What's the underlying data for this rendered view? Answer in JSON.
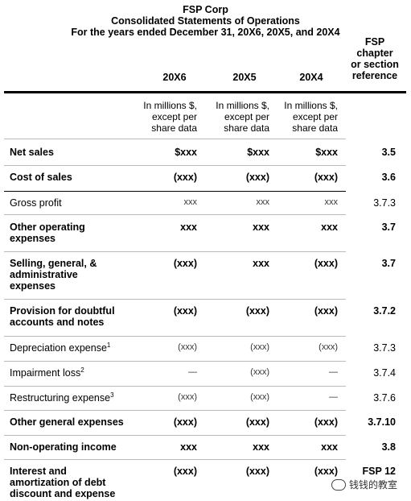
{
  "header": {
    "company": "FSP Corp",
    "statement": "Consolidated Statements of Operations",
    "period": "For the years ended December 31, 20X6, 20X5, and 20X4",
    "years": [
      "20X6",
      "20X5",
      "20X4"
    ],
    "fsp_ref_line1": "FSP",
    "fsp_ref_line2": "chapter",
    "fsp_ref_line3": "or section",
    "fsp_ref_line4": "reference",
    "units_line1": "In millions $,",
    "units_line2": "except per",
    "units_line3": "share data"
  },
  "rows": [
    {
      "label": [
        "Net sales"
      ],
      "bold": true,
      "values": [
        "$xxx",
        "$xxx",
        "$xxx"
      ],
      "ref": "3.5"
    },
    {
      "label": [
        "Cost of sales"
      ],
      "bold": true,
      "values": [
        "(xxx)",
        "(xxx)",
        "(xxx)"
      ],
      "ref": "3.6"
    },
    {
      "label": [
        "Gross profit"
      ],
      "bold": false,
      "values": [
        "xxx",
        "xxx",
        "xxx"
      ],
      "ref": "3.7.3"
    },
    {
      "label": [
        "Other operating",
        "expenses"
      ],
      "bold": true,
      "values": [
        "xxx",
        "xxx",
        "xxx"
      ],
      "ref": "3.7"
    },
    {
      "label": [
        "Selling, general, &",
        "administrative",
        "expenses"
      ],
      "bold": true,
      "values": [
        "(xxx)",
        "xxx",
        "(xxx)"
      ],
      "ref": "3.7"
    },
    {
      "label": [
        "Provision for doubtful",
        "accounts and notes"
      ],
      "bold": true,
      "values": [
        "(xxx)",
        "(xxx)",
        "(xxx)"
      ],
      "ref": "3.7.2"
    },
    {
      "label": [
        "Depreciation expense"
      ],
      "sup": "1",
      "bold": false,
      "values": [
        "(xxx)",
        "(xxx)",
        "(xxx)"
      ],
      "ref": "3.7.3"
    },
    {
      "label": [
        "Impairment loss"
      ],
      "sup": "2",
      "bold": false,
      "values": [
        "—",
        "(xxx)",
        "—"
      ],
      "ref": "3.7.4"
    },
    {
      "label": [
        "Restructuring expense"
      ],
      "sup": "3",
      "bold": false,
      "values": [
        "(xxx)",
        "(xxx)",
        "—"
      ],
      "ref": "3.7.6"
    },
    {
      "label": [
        "Other general expenses"
      ],
      "bold": true,
      "values": [
        "(xxx)",
        "(xxx)",
        "(xxx)"
      ],
      "ref": "3.7.10"
    },
    {
      "label": [
        "Non-operating income"
      ],
      "bold": true,
      "values": [
        "xxx",
        "xxx",
        "xxx"
      ],
      "ref": "3.8"
    },
    {
      "label": [
        "Interest and",
        "amortization of debt",
        "discount and expense"
      ],
      "bold": true,
      "values": [
        "(xxx)",
        "(xxx)",
        "(xxx)"
      ],
      "ref": "FSP 12"
    }
  ],
  "watermark": "钱钱的教室"
}
